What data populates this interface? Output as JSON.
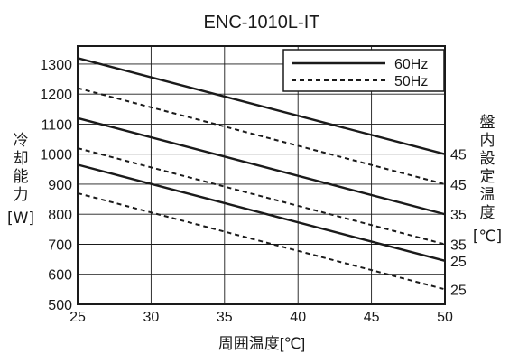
{
  "chart_data": {
    "type": "line",
    "title": "ENC-1010L-IT",
    "xlabel": "周囲温度[℃]",
    "ylabel_left": [
      "冷",
      "却",
      "能",
      "力",
      "[W]"
    ],
    "ylabel_right": [
      "盤",
      "内",
      "設",
      "定",
      "温",
      "度",
      "[℃]"
    ],
    "x_ticks": [
      25,
      30,
      35,
      40,
      45,
      50
    ],
    "y_ticks": [
      500,
      600,
      700,
      800,
      900,
      1000,
      1100,
      1200,
      1300
    ],
    "xlim": [
      25,
      50
    ],
    "ylim": [
      500,
      1360
    ],
    "grid": true,
    "legend_position": "top-right",
    "legend": [
      {
        "label": "60Hz",
        "style": "solid"
      },
      {
        "label": "50Hz",
        "style": "dashed"
      }
    ],
    "series": [
      {
        "frequency": "60Hz",
        "style": "solid",
        "setpoint": "45",
        "x": [
          25,
          50
        ],
        "y": [
          1320,
          1000
        ]
      },
      {
        "frequency": "50Hz",
        "style": "dashed",
        "setpoint": "45",
        "x": [
          25,
          50
        ],
        "y": [
          1220,
          900
        ]
      },
      {
        "frequency": "60Hz",
        "style": "solid",
        "setpoint": "35",
        "x": [
          25,
          50
        ],
        "y": [
          1120,
          800
        ]
      },
      {
        "frequency": "50Hz",
        "style": "dashed",
        "setpoint": "35",
        "x": [
          25,
          50
        ],
        "y": [
          1020,
          700
        ]
      },
      {
        "frequency": "60Hz",
        "style": "solid",
        "setpoint": "25",
        "x": [
          25,
          50
        ],
        "y": [
          965,
          645
        ]
      },
      {
        "frequency": "50Hz",
        "style": "dashed",
        "setpoint": "25",
        "x": [
          25,
          50
        ],
        "y": [
          870,
          550
        ]
      }
    ],
    "colors": {
      "line": "#1a1a1a",
      "grid": "#1a1a1a",
      "background": "#ffffff"
    }
  }
}
